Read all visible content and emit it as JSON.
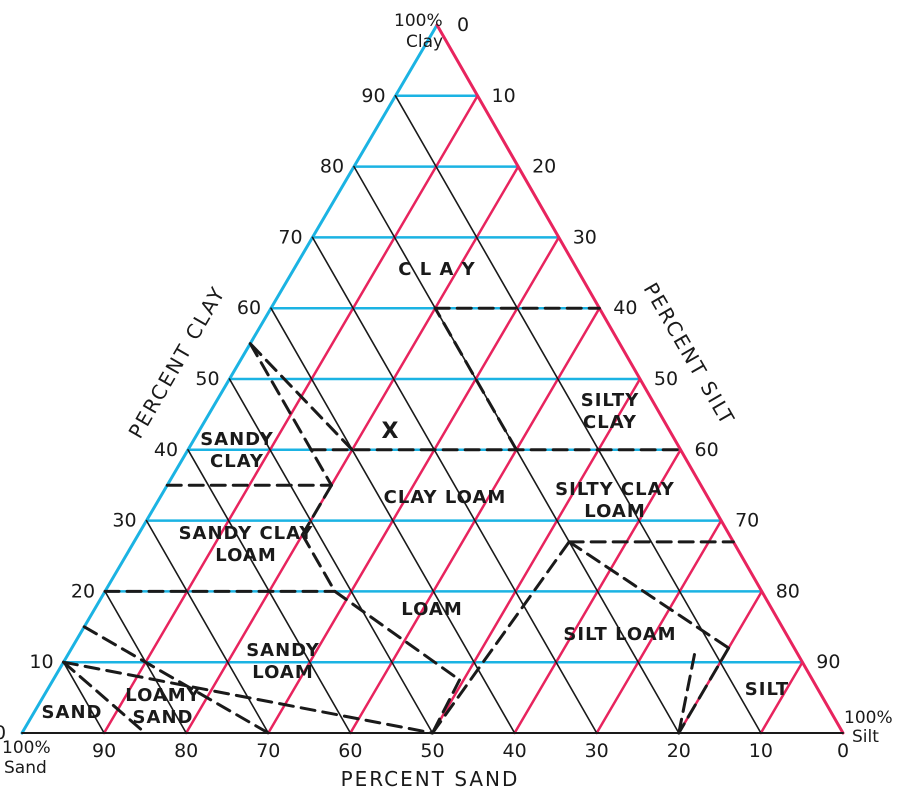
{
  "diagram": {
    "corner_labels": {
      "clay_top": [
        "100%",
        "Clay"
      ],
      "silt_right": [
        "100%",
        "Silt"
      ],
      "sand_left": [
        "100%",
        "Sand"
      ]
    },
    "axis_titles": {
      "clay": "PERCENT CLAY",
      "silt": "PERCENT SILT",
      "sand": "PERCENT SAND"
    },
    "clay_ticks": [
      "0",
      "10",
      "20",
      "30",
      "40",
      "50",
      "60",
      "70",
      "80",
      "90"
    ],
    "silt_ticks": [
      "0",
      "10",
      "20",
      "30",
      "40",
      "50",
      "60",
      "70",
      "80",
      "90"
    ],
    "sand_ticks": [
      "90",
      "80",
      "70",
      "60",
      "50",
      "40",
      "30",
      "20",
      "10",
      "0"
    ],
    "regions": [
      {
        "id": "clay",
        "lines": [
          "C L A Y"
        ]
      },
      {
        "id": "silty-clay",
        "lines": [
          "SILTY",
          "CLAY"
        ]
      },
      {
        "id": "sandy-clay",
        "lines": [
          "SANDY",
          "CLAY"
        ]
      },
      {
        "id": "clay-loam",
        "lines": [
          "CLAY  LOAM"
        ]
      },
      {
        "id": "silty-clay-loam",
        "lines": [
          "SILTY  CLAY",
          "LOAM"
        ]
      },
      {
        "id": "sandy-clay-loam",
        "lines": [
          "SANDY  CLAY",
          "LOAM"
        ]
      },
      {
        "id": "loam",
        "lines": [
          "LOAM"
        ]
      },
      {
        "id": "silt-loam",
        "lines": [
          "SILT  LOAM"
        ]
      },
      {
        "id": "sandy-loam",
        "lines": [
          "SANDY",
          "LOAM"
        ]
      },
      {
        "id": "loamy-sand",
        "lines": [
          "LOAMY",
          "SAND"
        ]
      },
      {
        "id": "sand",
        "lines": [
          "SAND"
        ]
      },
      {
        "id": "silt",
        "lines": [
          "SILT"
        ]
      }
    ],
    "marker": "X",
    "colors": {
      "clay_lines": "#1bb3e3",
      "silt_lines": "#e8245e",
      "sand_lines": "#1a1a1a",
      "boundaries": "#1a1a1a"
    }
  }
}
